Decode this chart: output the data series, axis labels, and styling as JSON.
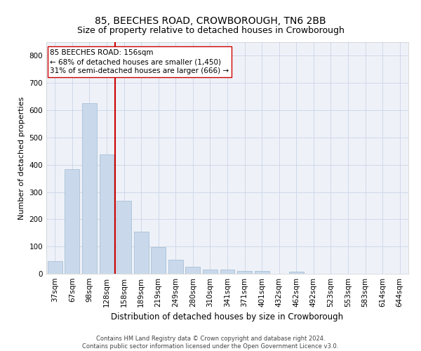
{
  "title": "85, BEECHES ROAD, CROWBOROUGH, TN6 2BB",
  "subtitle": "Size of property relative to detached houses in Crowborough",
  "xlabel": "Distribution of detached houses by size in Crowborough",
  "ylabel": "Number of detached properties",
  "bar_color": "#c9d9eb",
  "bar_edge_color": "#a0b8d0",
  "categories": [
    "37sqm",
    "67sqm",
    "98sqm",
    "128sqm",
    "158sqm",
    "189sqm",
    "219sqm",
    "249sqm",
    "280sqm",
    "310sqm",
    "341sqm",
    "371sqm",
    "401sqm",
    "432sqm",
    "462sqm",
    "492sqm",
    "523sqm",
    "553sqm",
    "583sqm",
    "614sqm",
    "644sqm"
  ],
  "values": [
    47,
    383,
    625,
    438,
    268,
    155,
    97,
    52,
    27,
    15,
    15,
    10,
    10,
    0,
    7,
    0,
    0,
    0,
    0,
    0,
    0
  ],
  "ylim": [
    0,
    850
  ],
  "yticks": [
    0,
    100,
    200,
    300,
    400,
    500,
    600,
    700,
    800
  ],
  "vline_x": 3.5,
  "vline_color": "#cc0000",
  "annotation_line1": "85 BEECHES ROAD: 156sqm",
  "annotation_line2": "← 68% of detached houses are smaller (1,450)",
  "annotation_line3": "31% of semi-detached houses are larger (666) →",
  "annotation_box_color": "#ffffff",
  "annotation_box_edge": "#cc0000",
  "footnote": "Contains HM Land Registry data © Crown copyright and database right 2024.\nContains public sector information licensed under the Open Government Licence v3.0.",
  "bg_color": "#eef2f8",
  "grid_color": "#d0d8e8",
  "title_fontsize": 10,
  "subtitle_fontsize": 9,
  "xlabel_fontsize": 8.5,
  "ylabel_fontsize": 8,
  "tick_fontsize": 7.5,
  "annotation_fontsize": 7.5
}
